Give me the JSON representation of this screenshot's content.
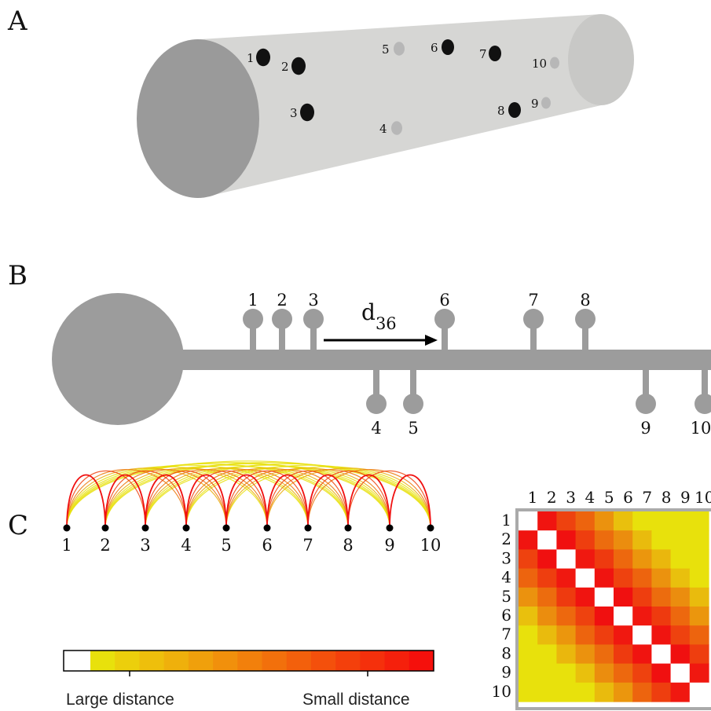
{
  "panels": {
    "a": "A",
    "b": "B",
    "c": "C"
  },
  "cylinder": {
    "spines": [
      {
        "label": "1",
        "shade": "dark"
      },
      {
        "label": "2",
        "shade": "dark"
      },
      {
        "label": "3",
        "shade": "dark"
      },
      {
        "label": "4",
        "shade": "light"
      },
      {
        "label": "5",
        "shade": "light"
      },
      {
        "label": "6",
        "shade": "dark"
      },
      {
        "label": "7",
        "shade": "dark"
      },
      {
        "label": "8",
        "shade": "dark"
      },
      {
        "label": "9",
        "shade": "light"
      },
      {
        "label": "10",
        "shade": "light"
      }
    ]
  },
  "dendrite": {
    "top_spines": [
      "1",
      "2",
      "3",
      "6",
      "7",
      "8"
    ],
    "bottom_spines": [
      "4",
      "5",
      "9",
      "10"
    ],
    "distance_label": "d",
    "distance_subscript": "36"
  },
  "arc_graph": {
    "nodes": [
      "1",
      "2",
      "3",
      "4",
      "5",
      "6",
      "7",
      "8",
      "9",
      "10"
    ]
  },
  "colorbar": {
    "left_label": "Large distance",
    "right_label": "Small distance",
    "colors": [
      "#ffffff",
      "#e8e10c",
      "#eccf0c",
      "#eebf0c",
      "#efb00c",
      "#f0a00c",
      "#f1900c",
      "#f2800c",
      "#f2700c",
      "#f3600c",
      "#f4500c",
      "#f4400c",
      "#f5300c",
      "#f5200c",
      "#f5100c"
    ]
  },
  "matrix": {
    "row_labels": [
      "1",
      "2",
      "3",
      "4",
      "5",
      "6",
      "7",
      "8",
      "9",
      "10"
    ],
    "col_labels": [
      "1",
      "2",
      "3",
      "4",
      "5",
      "6",
      "7",
      "8",
      "9",
      "10"
    ],
    "diagonal_color": "#ffffff"
  },
  "colors": {
    "shape_gray": "#9c9c9c",
    "cylinder_body": "#d6d6d4",
    "cylinder_front": "#9a9a9a",
    "cylinder_back": "#c8c8c6",
    "spine_dark": "#111111",
    "spine_light": "#b7b7b7",
    "near": "#f01010",
    "far": "#e8e10c"
  }
}
